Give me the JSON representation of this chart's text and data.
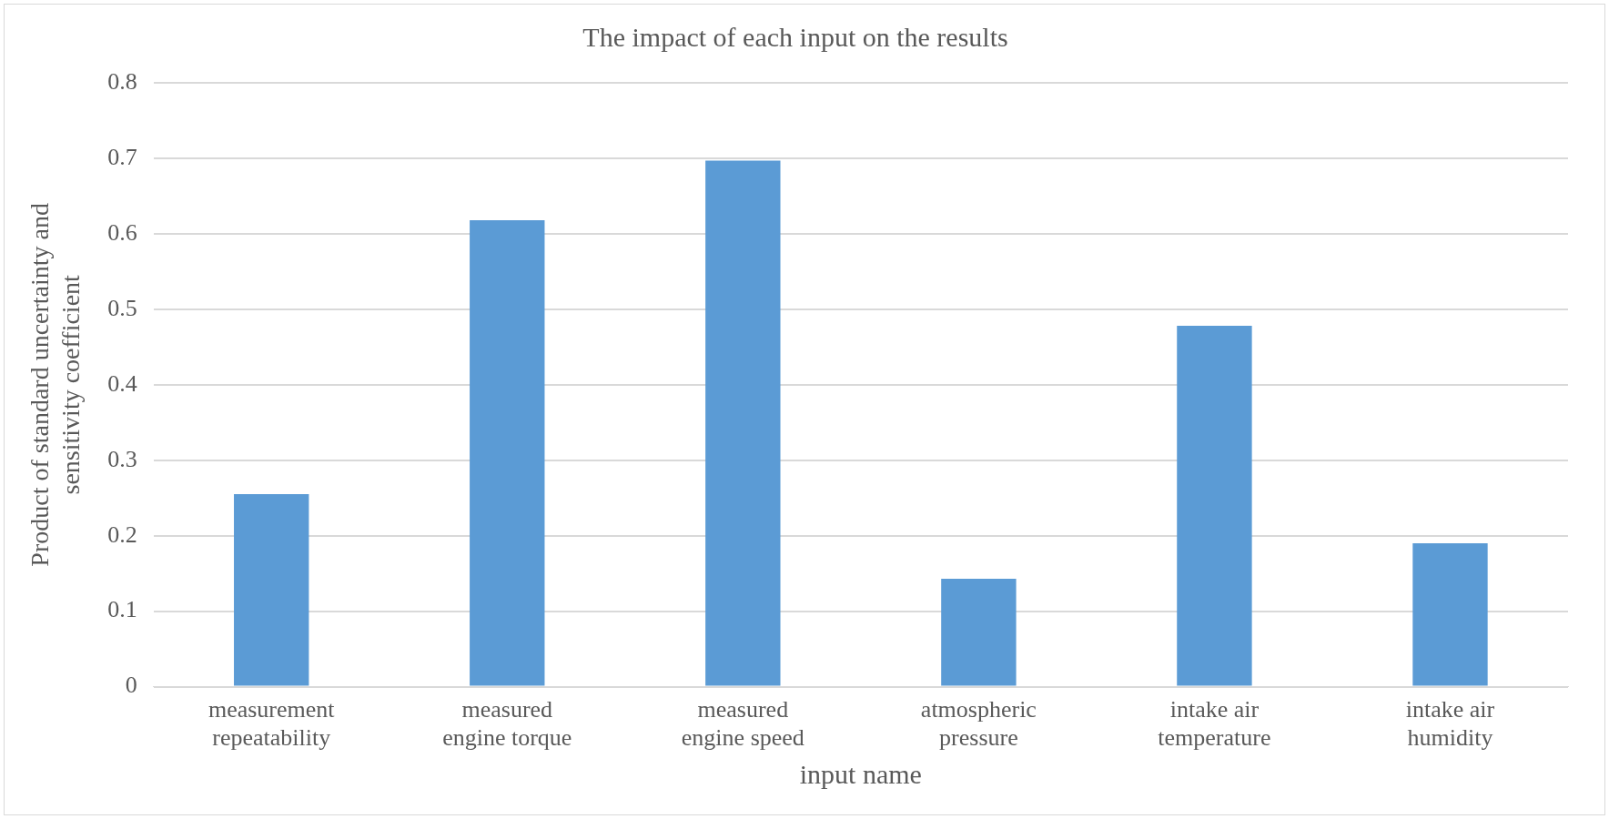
{
  "chart_data": {
    "type": "bar",
    "title": "The impact of each input on the results",
    "xlabel": "input name",
    "ylabel": "Product of standard uncertainty and sensitivity coefficient",
    "categories": [
      "measurement repeatability",
      "measured engine torque",
      "measured engine speed",
      "atmospheric pressure",
      "intake air temperature",
      "intake air humidity"
    ],
    "values": [
      0.255,
      0.618,
      0.697,
      0.143,
      0.478,
      0.19
    ],
    "color": "#5b9bd5",
    "ylim": [
      0,
      0.8
    ],
    "yticks": [
      0,
      0.1,
      0.2,
      0.3,
      0.4,
      0.5,
      0.6,
      0.7,
      0.8
    ],
    "grid": "y",
    "legend": false
  }
}
